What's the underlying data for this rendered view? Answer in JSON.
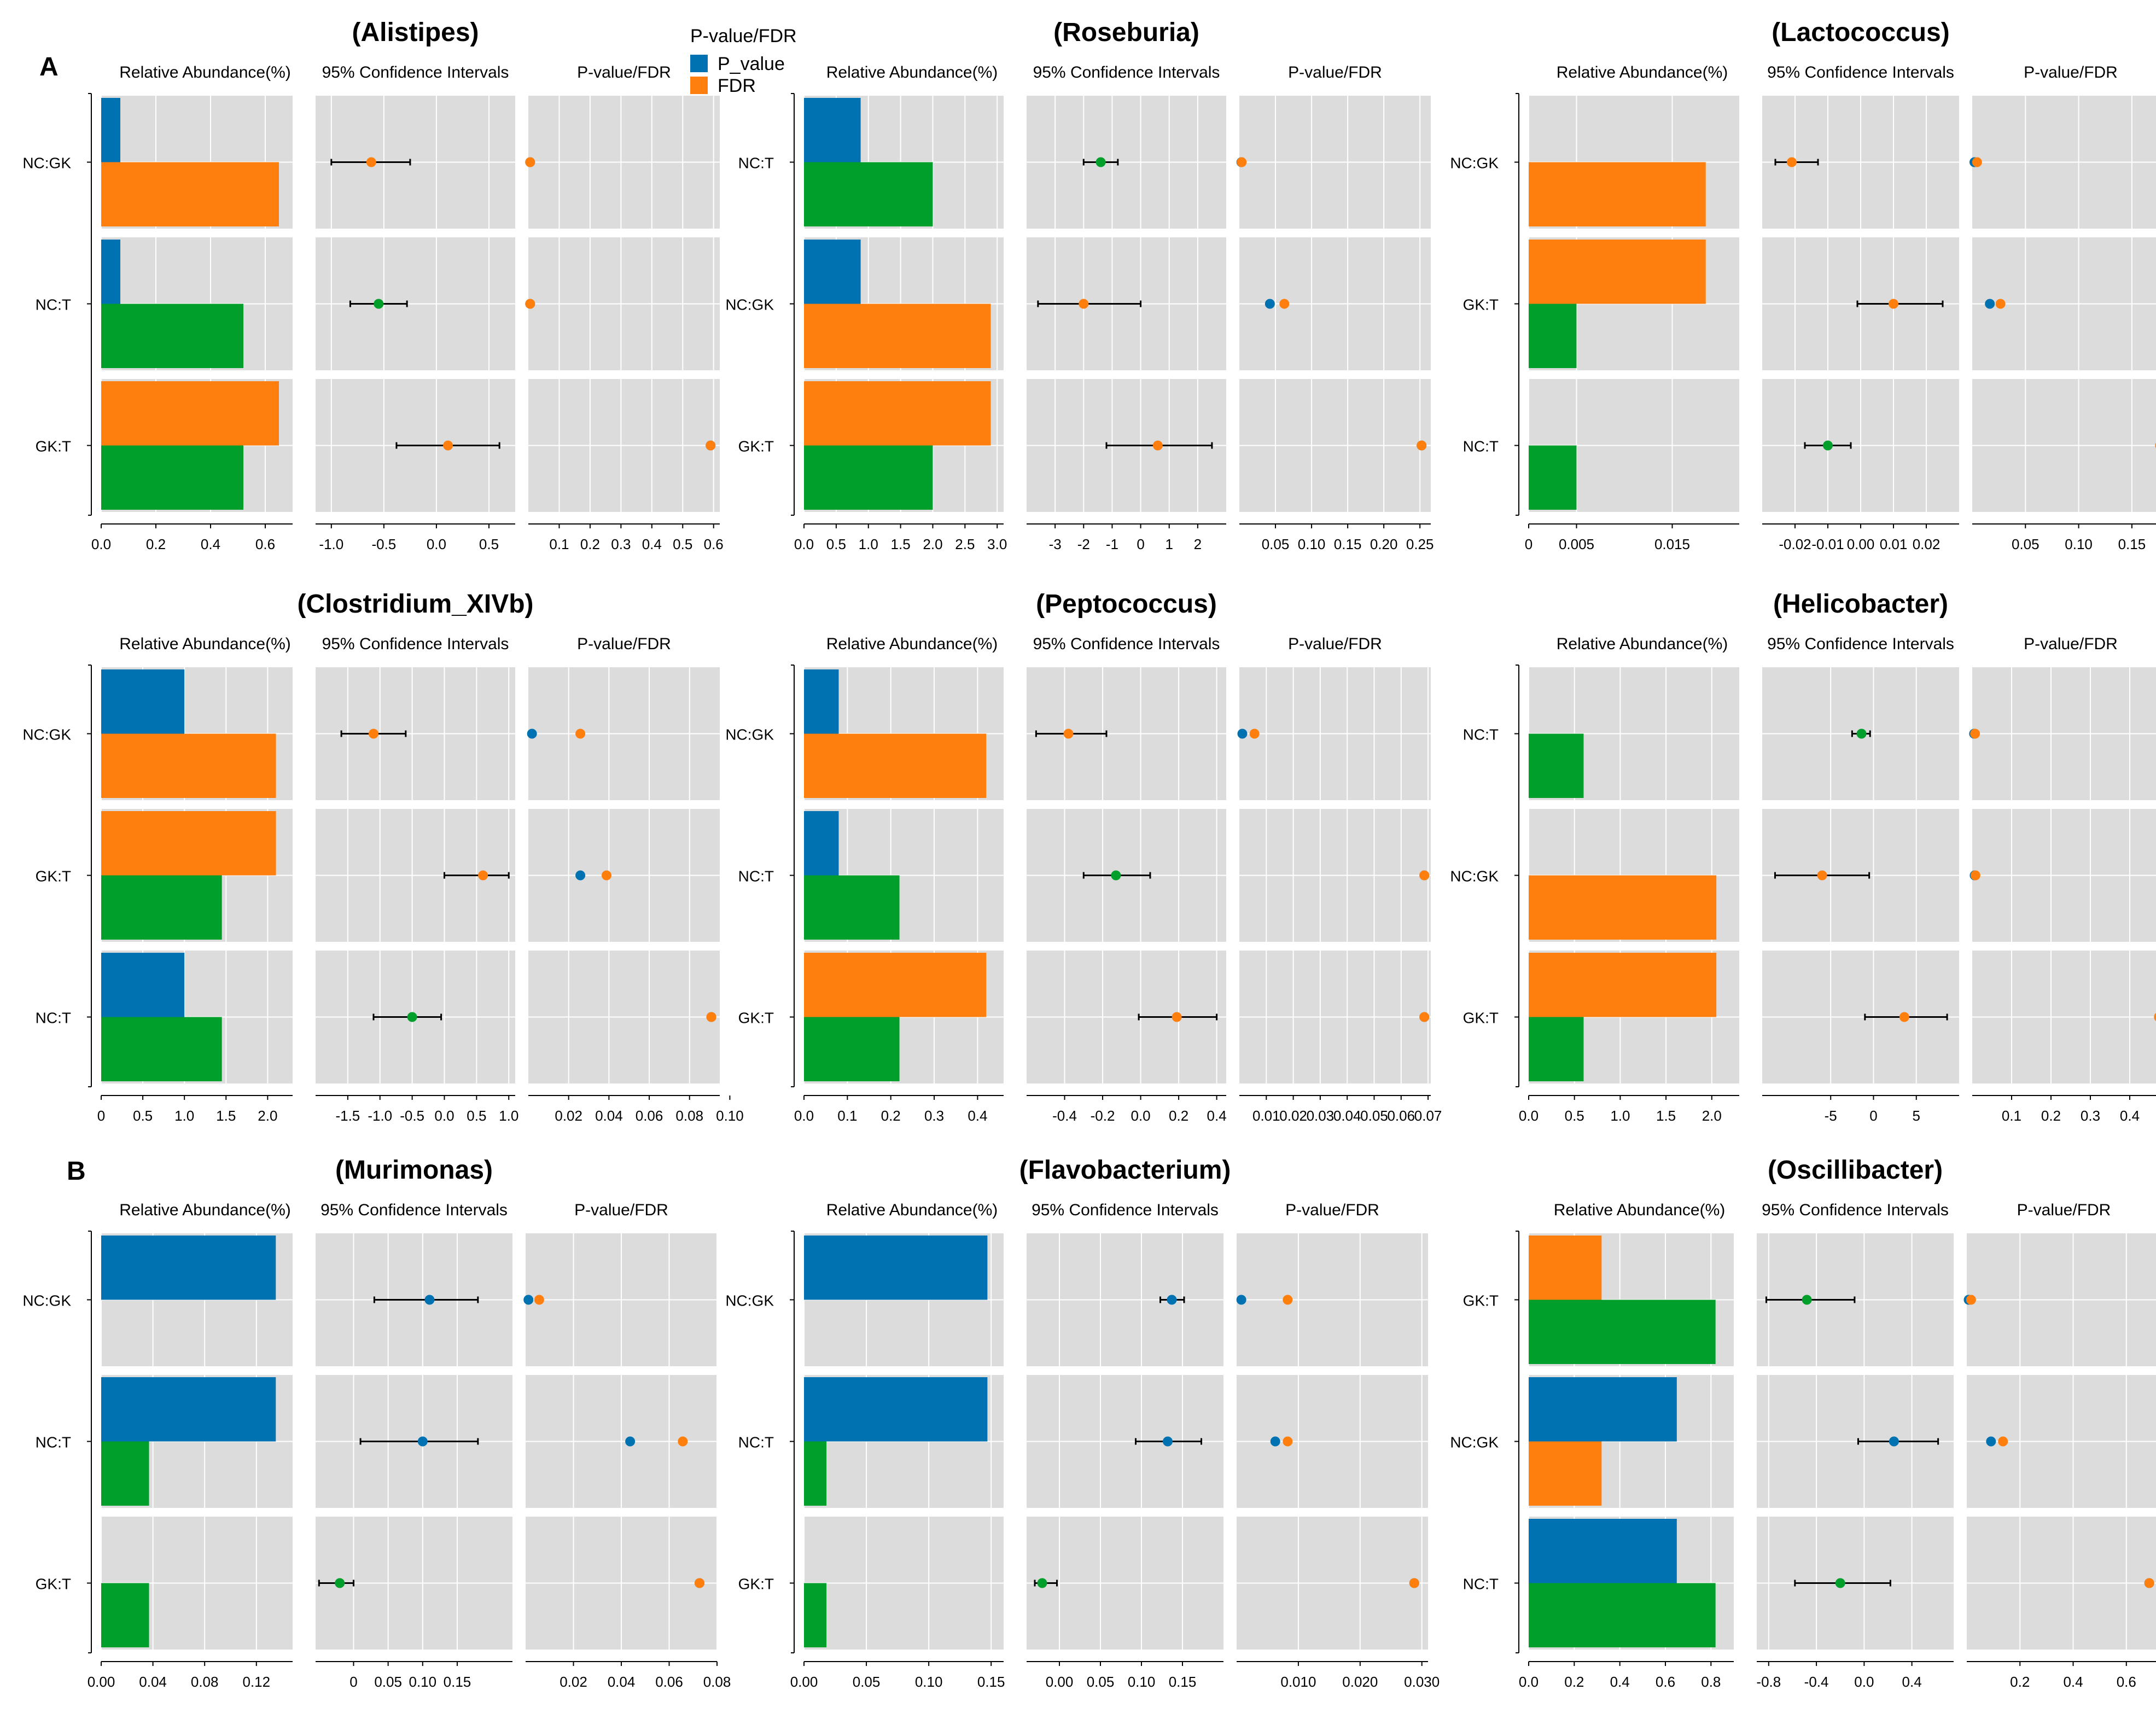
{
  "section_labels": [
    "A",
    "B"
  ],
  "panel_headers": {
    "abundance": "Relative Abundance(%)",
    "ci": "95% Confidence Intervals",
    "p": "P-value/FDR"
  },
  "legend": {
    "title": "P-value/FDR",
    "items": [
      {
        "label": "P_value",
        "color": "#0072b2"
      },
      {
        "label": "FDR",
        "color": "#ff7f0e"
      }
    ]
  },
  "colors": {
    "NC": "#0072b2",
    "GK": "#ff7f0e",
    "T": "#009e2a",
    "panel_bg": "#dcdcdc",
    "grid": "#ffffff"
  },
  "chart_data": [
    {
      "type": "bar",
      "title": "(Alistipes)",
      "rows": [
        {
          "label": "NC:GK",
          "g1": "NC",
          "g2": "GK",
          "a1": 0.07,
          "a2": 0.65,
          "ci": [
            -1.0,
            -0.25
          ],
          "est": -0.62,
          "est_group": "GK",
          "p": 0.0005,
          "fdr": 0.0005
        },
        {
          "label": "NC:T",
          "g1": "NC",
          "g2": "T",
          "a1": 0.07,
          "a2": 0.52,
          "ci": [
            -0.82,
            -0.28
          ],
          "est": -0.55,
          "est_group": "T",
          "p": 0.0005,
          "fdr": 0.0005
        },
        {
          "label": "GK:T",
          "g1": "GK",
          "g2": "T",
          "a1": 0.65,
          "a2": 0.52,
          "ci": [
            -0.38,
            0.6
          ],
          "est": 0.11,
          "est_group": "GK",
          "p": 0.585,
          "fdr": 0.585
        }
      ],
      "abund_lim": [
        0,
        0.7
      ],
      "abund_ticks": [
        "0.0",
        "0.2",
        "0.4",
        "0.6"
      ],
      "abund_tick_values": [
        0,
        0.2,
        0.4,
        0.6
      ],
      "ci_lim": [
        -1.15,
        0.75
      ],
      "ci_ticks": [
        "-1.0",
        "-0.5",
        "0.0",
        "0.5"
      ],
      "ci_tick_values": [
        -1.0,
        -0.5,
        0.0,
        0.5
      ],
      "p_lim": [
        0,
        0.62
      ],
      "p_ticks": [
        "0.1",
        "0.2",
        "0.3",
        "0.4",
        "0.5",
        "0.6"
      ],
      "p_tick_values": [
        0.1,
        0.2,
        0.3,
        0.4,
        0.5,
        0.6
      ]
    },
    {
      "type": "bar",
      "title": "(Roseburia)",
      "rows": [
        {
          "label": "NC:T",
          "g1": "NC",
          "g2": "T",
          "a1": 0.88,
          "a2": 2.0,
          "ci": [
            -2.0,
            -0.8
          ],
          "est": -1.4,
          "est_group": "T",
          "p": 0.0005,
          "fdr": 0.001
        },
        {
          "label": "NC:GK",
          "g1": "NC",
          "g2": "GK",
          "a1": 0.88,
          "a2": 2.9,
          "ci": [
            -3.6,
            0.0
          ],
          "est": -2.0,
          "est_group": "GK",
          "p": 0.04,
          "fdr": 0.06
        },
        {
          "label": "GK:T",
          "g1": "GK",
          "g2": "T",
          "a1": 2.9,
          "a2": 2.0,
          "ci": [
            -1.2,
            2.5
          ],
          "est": 0.6,
          "est_group": "GK",
          "p": 0.25,
          "fdr": 0.25
        }
      ],
      "abund_lim": [
        0,
        3.1
      ],
      "abund_ticks": [
        "0.0",
        "0.5",
        "1.0",
        "1.5",
        "2.0",
        "2.5",
        "3.0"
      ],
      "abund_tick_values": [
        0,
        0.5,
        1.0,
        1.5,
        2.0,
        2.5,
        3.0
      ],
      "ci_lim": [
        -4.0,
        3.0
      ],
      "ci_ticks": [
        "-3",
        "-2",
        "-1",
        "0",
        "1",
        "2"
      ],
      "ci_tick_values": [
        -3,
        -2,
        -1,
        0,
        1,
        2
      ],
      "p_lim": [
        0,
        0.265
      ],
      "p_ticks": [
        "0.05",
        "0.10",
        "0.15",
        "0.20",
        "0.25"
      ],
      "p_tick_values": [
        0.05,
        0.1,
        0.15,
        0.2,
        0.25
      ]
    },
    {
      "type": "bar",
      "title": "(Lactococcus)",
      "rows": [
        {
          "label": "NC:GK",
          "g1": "NC",
          "g2": "GK",
          "a1": 0,
          "a2": 0.0185,
          "ci": [
            -0.026,
            -0.013
          ],
          "est": -0.021,
          "est_group": "GK",
          "p": 0.0005,
          "fdr": 0.003
        },
        {
          "label": "GK:T",
          "g1": "GK",
          "g2": "T",
          "a1": 0.0185,
          "a2": 0.005,
          "ci": [
            -0.001,
            0.025
          ],
          "est": 0.01,
          "est_group": "GK",
          "p": 0.015,
          "fdr": 0.025
        },
        {
          "label": "NC:T",
          "g1": "NC",
          "g2": "T",
          "a1": 0,
          "a2": 0.005,
          "ci": [
            -0.017,
            -0.003
          ],
          "est": -0.01,
          "est_group": "T",
          "p": 0.175,
          "fdr": 0.175
        }
      ],
      "abund_lim": [
        0,
        0.022
      ],
      "abund_ticks": [
        "0",
        "0.005",
        "0.015"
      ],
      "abund_tick_values": [
        0,
        0.005,
        0.015
      ],
      "ci_lim": [
        -0.03,
        0.03
      ],
      "ci_ticks": [
        "-0.02",
        "-0.01",
        "0.00",
        "0.01",
        "0.02"
      ],
      "ci_tick_values": [
        -0.02,
        -0.01,
        0.0,
        0.01,
        0.02
      ],
      "p_lim": [
        0,
        0.185
      ],
      "p_ticks": [
        "0.05",
        "0.10",
        "0.15"
      ],
      "p_tick_values": [
        0.05,
        0.1,
        0.15
      ]
    },
    {
      "type": "bar",
      "title": "(Clostridium_XIVb)",
      "rows": [
        {
          "label": "NC:GK",
          "g1": "NC",
          "g2": "GK",
          "a1": 1.0,
          "a2": 2.1,
          "ci": [
            -1.6,
            -0.6
          ],
          "est": -1.1,
          "est_group": "GK",
          "p": 0.001,
          "fdr": 0.025
        },
        {
          "label": "GK:T",
          "g1": "GK",
          "g2": "T",
          "a1": 2.1,
          "a2": 1.45,
          "ci": [
            0.0,
            1.0
          ],
          "est": 0.6,
          "est_group": "GK",
          "p": 0.025,
          "fdr": 0.038
        },
        {
          "label": "NC:T",
          "g1": "NC",
          "g2": "T",
          "a1": 1.0,
          "a2": 1.45,
          "ci": [
            -1.1,
            -0.05
          ],
          "est": -0.5,
          "est_group": "T",
          "p": 0.09,
          "fdr": 0.09
        }
      ],
      "abund_lim": [
        0,
        2.3
      ],
      "abund_ticks": [
        "0",
        "0.5",
        "1.0",
        "1.5",
        "2.0"
      ],
      "abund_tick_values": [
        0,
        0.5,
        1.0,
        1.5,
        2.0
      ],
      "ci_lim": [
        -2.0,
        1.1
      ],
      "ci_ticks": [
        "-1.5",
        "-1.0",
        "-0.5",
        "0.0",
        "0.5",
        "1.0"
      ],
      "ci_tick_values": [
        -1.5,
        -1.0,
        -0.5,
        0.0,
        0.5,
        1.0
      ],
      "p_lim": [
        0,
        0.095
      ],
      "p_ticks": [
        "0.02",
        "0.04",
        "0.06",
        "0.08",
        "0.10"
      ],
      "p_tick_values": [
        0.02,
        0.04,
        0.06,
        0.08,
        0.1
      ]
    },
    {
      "type": "bar",
      "title": "(Peptococcus)",
      "rows": [
        {
          "label": "NC:GK",
          "g1": "NC",
          "g2": "GK",
          "a1": 0.08,
          "a2": 0.42,
          "ci": [
            -0.55,
            -0.18
          ],
          "est": -0.38,
          "est_group": "GK",
          "p": 0.0005,
          "fdr": 0.005
        },
        {
          "label": "NC:T",
          "g1": "NC",
          "g2": "T",
          "a1": 0.08,
          "a2": 0.22,
          "ci": [
            -0.3,
            0.05
          ],
          "est": -0.13,
          "est_group": "T",
          "p": 0.068,
          "fdr": 0.068
        },
        {
          "label": "GK:T",
          "g1": "GK",
          "g2": "T",
          "a1": 0.42,
          "a2": 0.22,
          "ci": [
            -0.01,
            0.4
          ],
          "est": 0.19,
          "est_group": "GK",
          "p": 0.068,
          "fdr": 0.068
        }
      ],
      "abund_lim": [
        0,
        0.46
      ],
      "abund_ticks": [
        "0.0",
        "0.1",
        "0.2",
        "0.3",
        "0.4"
      ],
      "abund_tick_values": [
        0,
        0.1,
        0.2,
        0.3,
        0.4
      ],
      "ci_lim": [
        -0.6,
        0.45
      ],
      "ci_ticks": [
        "-0.4",
        "-0.2",
        "0.0",
        "0.2",
        "0.4"
      ],
      "ci_tick_values": [
        -0.4,
        -0.2,
        0.0,
        0.2,
        0.4
      ],
      "p_lim": [
        0,
        0.071
      ],
      "p_ticks": [
        "0.01",
        "0.02",
        "0.03",
        "0.04",
        "0.05",
        "0.06",
        "0.07"
      ],
      "p_tick_values": [
        0.01,
        0.02,
        0.03,
        0.04,
        0.05,
        0.06,
        0.07
      ]
    },
    {
      "type": "bar",
      "title": "(Helicobacter)",
      "rows": [
        {
          "label": "NC:T",
          "g1": "NC",
          "g2": "T",
          "a1": 0,
          "a2": 0.6,
          "ci": [
            -2.5,
            -0.4
          ],
          "est": -1.4,
          "est_group": "T",
          "p": 0.0005,
          "fdr": 0.003
        },
        {
          "label": "NC:GK",
          "g1": "NC",
          "g2": "GK",
          "a1": 0,
          "a2": 2.05,
          "ci": [
            -11.5,
            -0.5
          ],
          "est": -6.0,
          "est_group": "GK",
          "p": 0.002,
          "fdr": 0.004
        },
        {
          "label": "GK:T",
          "g1": "GK",
          "g2": "T",
          "a1": 2.05,
          "a2": 0.6,
          "ci": [
            -1.0,
            8.6
          ],
          "est": 3.6,
          "est_group": "GK",
          "p": 0.47,
          "fdr": 0.47
        }
      ],
      "abund_lim": [
        0,
        2.3
      ],
      "abund_ticks": [
        "0.0",
        "0.5",
        "1.0",
        "1.5",
        "2.0"
      ],
      "abund_tick_values": [
        0,
        0.5,
        1.0,
        1.5,
        2.0
      ],
      "ci_lim": [
        -13,
        10
      ],
      "ci_ticks": [
        "-5",
        "0",
        "5"
      ],
      "ci_tick_values": [
        -5,
        0,
        5
      ],
      "p_lim": [
        0,
        0.5
      ],
      "p_ticks": [
        "0.1",
        "0.2",
        "0.3",
        "0.4",
        "0.5"
      ],
      "p_tick_values": [
        0.1,
        0.2,
        0.3,
        0.4,
        0.5
      ]
    },
    {
      "type": "bar",
      "title": "(Murimonas)",
      "rows": [
        {
          "label": "NC:GK",
          "g1": "NC",
          "g2": "",
          "a1": 0.135,
          "a2": 0,
          "ci": [
            0.03,
            0.18
          ],
          "est": 0.11,
          "est_group": "NC",
          "p": 0.0005,
          "fdr": 0.005
        },
        {
          "label": "NC:T",
          "g1": "NC",
          "g2": "T",
          "a1": 0.135,
          "a2": 0.037,
          "ci": [
            0.01,
            0.18
          ],
          "est": 0.1,
          "est_group": "NC",
          "p": 0.043,
          "fdr": 0.065
        },
        {
          "label": "GK:T",
          "g1": "",
          "g2": "T",
          "a1": 0,
          "a2": 0.037,
          "ci": [
            -0.05,
            0.0
          ],
          "est": -0.02,
          "est_group": "T",
          "p": 0.072,
          "fdr": 0.072
        }
      ],
      "abund_lim": [
        0,
        0.148
      ],
      "abund_ticks": [
        "0.00",
        "0.04",
        "0.08",
        "0.12"
      ],
      "abund_tick_values": [
        0,
        0.04,
        0.08,
        0.12
      ],
      "ci_lim": [
        -0.055,
        0.23
      ],
      "ci_ticks": [
        "0",
        "0.05",
        "0.10",
        "0.15"
      ],
      "ci_tick_values": [
        0,
        0.05,
        0.1,
        0.15
      ],
      "p_lim": [
        0,
        0.08
      ],
      "p_ticks": [
        "0.02",
        "0.04",
        "0.06",
        "0.08"
      ],
      "p_tick_values": [
        0.02,
        0.04,
        0.06,
        0.08
      ]
    },
    {
      "type": "bar",
      "title": "(Flavobacterium)",
      "rows": [
        {
          "label": "NC:GK",
          "g1": "NC",
          "g2": "",
          "a1": 0.147,
          "a2": 0,
          "ci": [
            0.123,
            0.152
          ],
          "est": 0.137,
          "est_group": "NC",
          "p": 0.0005,
          "fdr": 0.008
        },
        {
          "label": "NC:T",
          "g1": "NC",
          "g2": "T",
          "a1": 0.147,
          "a2": 0.018,
          "ci": [
            0.093,
            0.173
          ],
          "est": 0.132,
          "est_group": "NC",
          "p": 0.006,
          "fdr": 0.008
        },
        {
          "label": "GK:T",
          "g1": "",
          "g2": "T",
          "a1": 0,
          "a2": 0.018,
          "ci": [
            -0.03,
            -0.003
          ],
          "est": -0.021,
          "est_group": "T",
          "p": 0.0285,
          "fdr": 0.0285
        }
      ],
      "abund_lim": [
        0,
        0.16
      ],
      "abund_ticks": [
        "0.00",
        "0.05",
        "0.10",
        "0.15"
      ],
      "abund_tick_values": [
        0,
        0.05,
        0.1,
        0.15
      ],
      "ci_lim": [
        -0.04,
        0.2
      ],
      "ci_ticks": [
        "0.00",
        "0.05",
        "0.10",
        "0.15"
      ],
      "ci_tick_values": [
        0,
        0.05,
        0.1,
        0.15
      ],
      "p_lim": [
        0,
        0.031
      ],
      "p_ticks": [
        "0.010",
        "0.020",
        "0.030"
      ],
      "p_tick_values": [
        0.01,
        0.02,
        0.03
      ]
    },
    {
      "type": "bar",
      "title": "(Oscillibacter)",
      "rows": [
        {
          "label": "GK:T",
          "g1": "GK",
          "g2": "T",
          "a1": 0.32,
          "a2": 0.82,
          "ci": [
            -0.82,
            -0.08
          ],
          "est": -0.48,
          "est_group": "T",
          "p": 0.001,
          "fdr": 0.01
        },
        {
          "label": "NC:GK",
          "g1": "NC",
          "g2": "GK",
          "a1": 0.65,
          "a2": 0.32,
          "ci": [
            -0.05,
            0.62
          ],
          "est": 0.25,
          "est_group": "NC",
          "p": 0.085,
          "fdr": 0.13
        },
        {
          "label": "NC:T",
          "g1": "NC",
          "g2": "T",
          "a1": 0.65,
          "a2": 0.82,
          "ci": [
            -0.58,
            0.22
          ],
          "est": -0.2,
          "est_group": "T",
          "p": 0.68,
          "fdr": 0.68
        }
      ],
      "abund_lim": [
        0,
        0.9
      ],
      "abund_ticks": [
        "0.0",
        "0.2",
        "0.4",
        "0.6",
        "0.8"
      ],
      "abund_tick_values": [
        0,
        0.2,
        0.4,
        0.6,
        0.8
      ],
      "ci_lim": [
        -0.9,
        0.75
      ],
      "ci_ticks": [
        "-0.8",
        "-0.4",
        "0.0",
        "0.4"
      ],
      "ci_tick_values": [
        -0.8,
        -0.4,
        0.0,
        0.4
      ],
      "p_lim": [
        0,
        0.73
      ],
      "p_ticks": [
        "0.2",
        "0.4",
        "0.6"
      ],
      "p_tick_values": [
        0.2,
        0.4,
        0.6
      ]
    }
  ]
}
